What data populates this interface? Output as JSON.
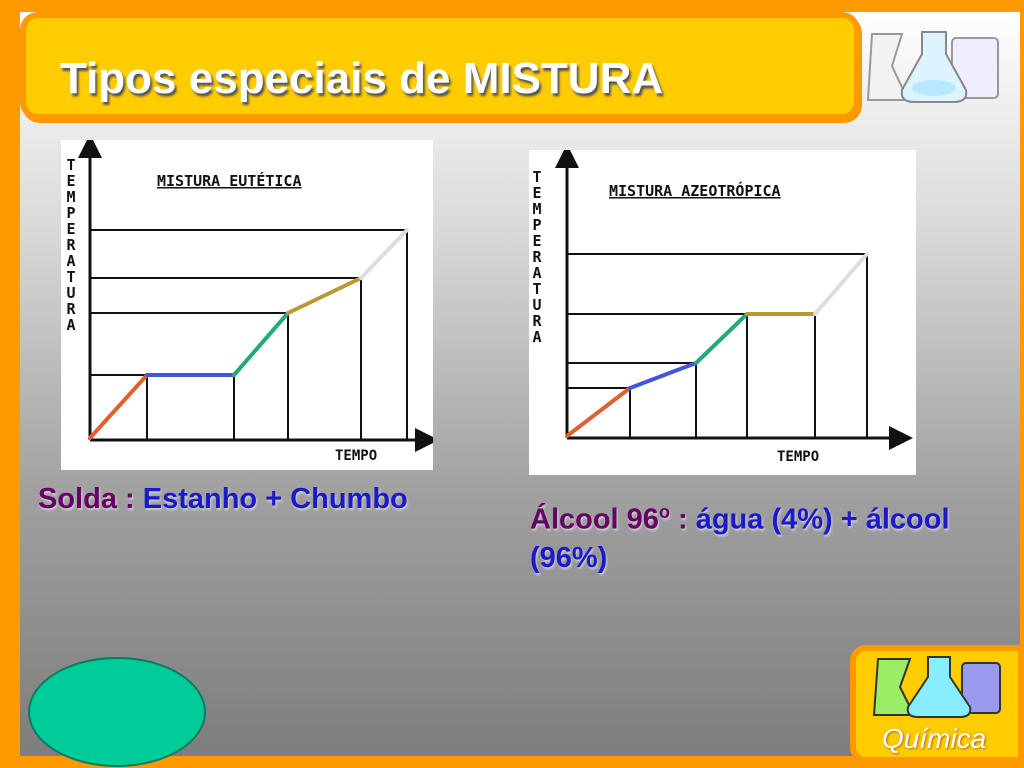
{
  "slide": {
    "title": "Tipos especiais de MISTURA",
    "logo_label": "Química"
  },
  "charts": [
    {
      "title": "MISTURA EUTÉTICA",
      "ylabel": "TEMPERATURA",
      "xlabel": "TEMPO"
    },
    {
      "title": "MISTURA AZEOTRÓPICA",
      "ylabel": "TEMPERATURA",
      "xlabel": "TEMPO"
    }
  ],
  "captions": {
    "left": {
      "part1": "Solda : ",
      "part2": "Estanho + Chumbo"
    },
    "right": {
      "part1": "Álcool 96",
      "part1_sup": "o",
      "part2": " : ",
      "part3": "água (4%) + álcool (96%)"
    }
  },
  "chart_data": [
    {
      "type": "line",
      "title": "MISTURA EUTÉTICA",
      "xlabel": "TEMPO",
      "ylabel": "TEMPERATURA",
      "note": "schematic heating curve; no numeric ticks",
      "segments": [
        {
          "color": "#e06030",
          "x": [
            0,
            1
          ],
          "y": [
            0,
            1
          ]
        },
        {
          "color": "#4455dd",
          "x": [
            1,
            2.4
          ],
          "y": [
            1,
            1
          ]
        },
        {
          "color": "#22aa77",
          "x": [
            2.4,
            3.3
          ],
          "y": [
            1,
            2
          ]
        },
        {
          "color": "#b89a30",
          "x": [
            3.3,
            4.5
          ],
          "y": [
            2,
            2.4
          ]
        },
        {
          "color": "#dddddd",
          "x": [
            4.5,
            5.3
          ],
          "y": [
            2.4,
            3.2
          ]
        }
      ],
      "colors": {
        "series": [
          "#e06030",
          "#4455dd",
          "#22aa77",
          "#b89a30",
          "#dddddd"
        ]
      }
    },
    {
      "type": "line",
      "title": "MISTURA AZEOTRÓPICA",
      "xlabel": "TEMPO",
      "ylabel": "TEMPERATURA",
      "note": "schematic heating curve; no numeric ticks",
      "segments": [
        {
          "color": "#e06030",
          "x": [
            0,
            1
          ],
          "y": [
            0,
            1
          ]
        },
        {
          "color": "#4455dd",
          "x": [
            1,
            2
          ],
          "y": [
            1,
            1.4
          ]
        },
        {
          "color": "#22aa77",
          "x": [
            2,
            3
          ],
          "y": [
            1.4,
            2.4
          ]
        },
        {
          "color": "#b89a30",
          "x": [
            3,
            4.3
          ],
          "y": [
            2.4,
            2.4
          ]
        },
        {
          "color": "#dddddd",
          "x": [
            4.3,
            5.3
          ],
          "y": [
            2.4,
            3.4
          ]
        }
      ],
      "colors": {
        "series": [
          "#e06030",
          "#4455dd",
          "#22aa77",
          "#b89a30",
          "#dddddd"
        ]
      }
    }
  ]
}
